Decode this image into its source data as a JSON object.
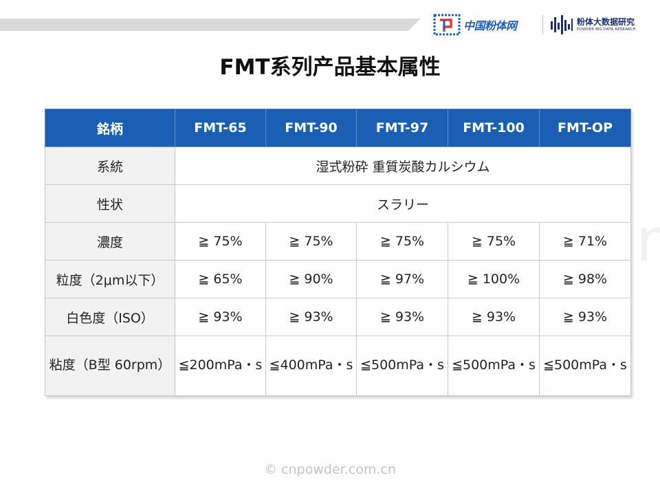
{
  "header": {
    "logo_left_text": "中国粉体网",
    "logo_right_cn": "粉体大数据研究",
    "logo_right_en": "POWDER BIG DATA RESEARCH"
  },
  "title": "FMT系列产品基本属性",
  "table": {
    "header": [
      "銘柄",
      "FMT-65",
      "FMT-90",
      "FMT-97",
      "FMT-100",
      "FMT-OP"
    ],
    "rows": {
      "system": {
        "label": "系統",
        "value": "湿式粉砕 重質炭酸カルシウム"
      },
      "form": {
        "label": "性状",
        "value": "スラリー"
      },
      "concentration": {
        "label": "濃度",
        "values": [
          "≧ 75%",
          "≧ 75%",
          "≧ 75%",
          "≧ 75%",
          "≧ 71%"
        ]
      },
      "particle": {
        "label": "粒度（2μm以下）",
        "values": [
          "≧ 65%",
          "≧ 90%",
          "≧ 97%",
          "≧ 100%",
          "≧ 98%"
        ]
      },
      "whiteness": {
        "label": "白色度（ISO）",
        "values": [
          "≧ 93%",
          "≧ 93%",
          "≧ 93%",
          "≧ 93%",
          "≧ 93%"
        ]
      },
      "viscosity": {
        "label": "粘度（B型 60rpm）",
        "values": [
          "≦200mPa・s",
          "≦400mPa・s",
          "≦500mPa・s",
          "≦500mPa・s",
          "≦500mPa・s"
        ]
      }
    }
  },
  "watermark": {
    "center": "© cnpowder.com.cn",
    "bottom": "© cnpowder.com.cn"
  }
}
